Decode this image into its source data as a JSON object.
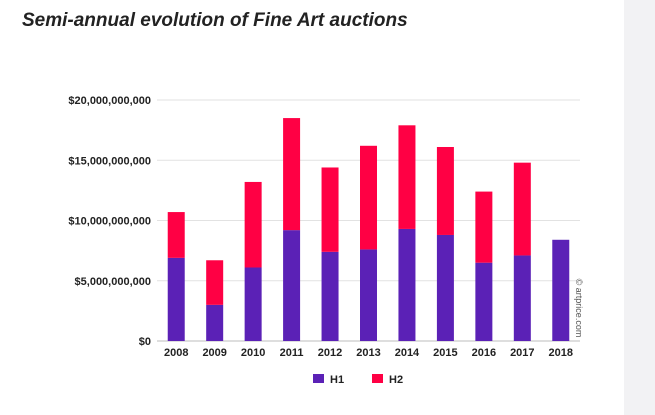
{
  "page": {
    "title": "Semi-annual evolution of Fine Art  auctions"
  },
  "chart_data": {
    "type": "bar",
    "stacked": true,
    "title": "Semi-annual evolution of Fine Art  auctions",
    "xlabel": "",
    "ylabel": "",
    "categories": [
      "2008",
      "2009",
      "2010",
      "2011",
      "2012",
      "2013",
      "2014",
      "2015",
      "2016",
      "2017",
      "2018"
    ],
    "series": [
      {
        "name": "H1",
        "color": "#5b21b6",
        "values": [
          6900000000,
          3000000000,
          6100000000,
          9200000000,
          7400000000,
          7600000000,
          9300000000,
          8800000000,
          6500000000,
          7100000000,
          8400000000
        ]
      },
      {
        "name": "H2",
        "color": "#ff0044",
        "values": [
          3800000000,
          3700000000,
          7100000000,
          9300000000,
          7000000000,
          8600000000,
          8600000000,
          7300000000,
          5900000000,
          7700000000,
          0
        ]
      }
    ],
    "ylim": [
      0,
      20000000000
    ],
    "yticks": [
      {
        "value": 0,
        "label": "$0"
      },
      {
        "value": 5000000000,
        "label": "$5,000,000,000"
      },
      {
        "value": 10000000000,
        "label": "$10,000,000,000"
      },
      {
        "value": 15000000000,
        "label": "$15,000,000,000"
      },
      {
        "value": 20000000000,
        "label": "$20,000,000,000"
      }
    ],
    "grid": true,
    "gridColor": "#e2e2e2",
    "legend": {
      "position": "bottom"
    },
    "credit": "© artprice.com"
  }
}
